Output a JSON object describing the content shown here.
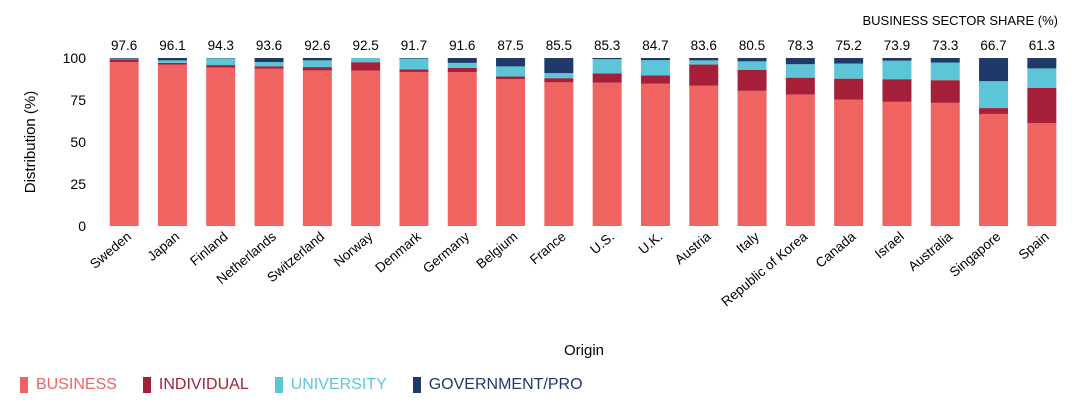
{
  "chart_data": {
    "type": "bar",
    "stacked": true,
    "xlabel": "Origin",
    "ylabel": "Distribution (%)",
    "ylim": [
      0,
      100
    ],
    "yticks": [
      0,
      25,
      50,
      75,
      100
    ],
    "top_label_title": "BUSINESS SECTOR SHARE (%)",
    "categories": [
      "Sweden",
      "Japan",
      "Finland",
      "Netherlands",
      "Switzerland",
      "Norway",
      "Denmark",
      "Germany",
      "Belgium",
      "France",
      "U.S.",
      "U.K.",
      "Austria",
      "Italy",
      "Republic of Korea",
      "Canada",
      "Israel",
      "Australia",
      "Singapore",
      "Spain"
    ],
    "top_labels": [
      "97.6",
      "96.1",
      "94.3",
      "93.6",
      "92.6",
      "92.5",
      "91.7",
      "91.6",
      "87.5",
      "85.5",
      "85.3",
      "84.7",
      "83.6",
      "80.5",
      "78.3",
      "75.2",
      "73.9",
      "73.3",
      "66.7",
      "61.3"
    ],
    "series": [
      {
        "name": "BUSINESS",
        "color": "#ef6461",
        "values": [
          97.6,
          96.1,
          94.3,
          93.6,
          92.6,
          92.5,
          91.7,
          91.6,
          87.5,
          85.5,
          85.3,
          84.7,
          83.6,
          80.5,
          78.3,
          75.2,
          73.9,
          73.3,
          66.7,
          61.3
        ]
      },
      {
        "name": "INDIVIDUAL",
        "color": "#a51f38",
        "values": [
          1.5,
          1.0,
          1.5,
          1.5,
          2.0,
          5.0,
          1.5,
          2.5,
          1.5,
          2.5,
          5.5,
          5.0,
          12.5,
          12.5,
          10.0,
          12.5,
          13.5,
          13.5,
          3.5,
          21.0
        ]
      },
      {
        "name": "UNIVERSITY",
        "color": "#5cc6d8",
        "values": [
          0.5,
          1.5,
          4.0,
          2.5,
          4.0,
          2.5,
          6.5,
          3.0,
          6.0,
          3.0,
          8.5,
          9.0,
          2.5,
          5.0,
          8.0,
          9.0,
          11.0,
          10.5,
          16.0,
          11.5
        ]
      },
      {
        "name": "GOVERNMENT/PRO",
        "color": "#1f3a68",
        "values": [
          0.4,
          1.4,
          0.2,
          2.4,
          1.4,
          0.0,
          0.3,
          2.9,
          5.0,
          9.0,
          0.7,
          1.3,
          1.4,
          2.0,
          3.7,
          3.3,
          1.6,
          2.7,
          13.8,
          6.2
        ]
      }
    ]
  },
  "legend": {
    "items": [
      {
        "label": "BUSINESS",
        "color": "#ef6461"
      },
      {
        "label": "INDIVIDUAL",
        "color": "#a51f38"
      },
      {
        "label": "UNIVERSITY",
        "color": "#5cc6d8"
      },
      {
        "label": "GOVERNMENT/PRO",
        "color": "#1f3a68"
      }
    ]
  }
}
